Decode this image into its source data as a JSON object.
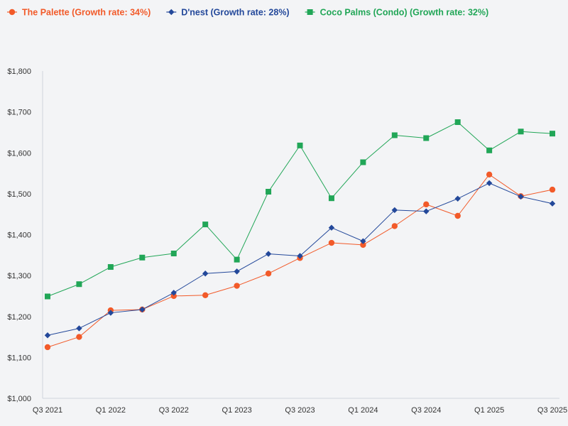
{
  "chart_data": {
    "type": "line",
    "title": "",
    "xlabel": "",
    "ylabel": "",
    "ylim": [
      1000,
      1800
    ],
    "ytick_step": 100,
    "ytick_labels": [
      "$1,000",
      "$1,100",
      "$1,200",
      "$1,300",
      "$1,400",
      "$1,500",
      "$1,600",
      "$1,700",
      "$1,800"
    ],
    "grid": false,
    "legend_position": "top-left",
    "categories": [
      "Q3 2021",
      "Q4 2021",
      "Q1 2022",
      "Q2 2022",
      "Q3 2022",
      "Q4 2022",
      "Q1 2023",
      "Q2 2023",
      "Q3 2023",
      "Q4 2023",
      "Q1 2024",
      "Q2 2024",
      "Q3 2024",
      "Q4 2024",
      "Q1 2025",
      "Q2 2025",
      "Q3 2025"
    ],
    "x_tick_labels": [
      "Q3 2021",
      "",
      "Q1 2022",
      "",
      "Q3 2022",
      "",
      "Q1 2023",
      "",
      "Q3 2023",
      "",
      "Q1 2024",
      "",
      "Q3 2024",
      "",
      "Q1 2025",
      "",
      "Q3 2025"
    ],
    "series": [
      {
        "name": "The Palette (Growth rate: 34%)",
        "color": "#f25a29",
        "marker": "circle",
        "values": [
          1125,
          1150,
          1215,
          1217,
          1250,
          1252,
          1275,
          1305,
          1343,
          1380,
          1375,
          1421,
          1474,
          1446,
          1547,
          1494,
          1510
        ]
      },
      {
        "name": "D'nest (Growth rate: 28%)",
        "color": "#23489a",
        "marker": "diamond",
        "values": [
          1154,
          1171,
          1209,
          1217,
          1258,
          1305,
          1310,
          1353,
          1348,
          1417,
          1384,
          1460,
          1457,
          1488,
          1526,
          1493,
          1476
        ]
      },
      {
        "name": "Coco Palms (Condo) (Growth rate: 32%)",
        "color": "#21a657",
        "marker": "square",
        "values": [
          1249,
          1279,
          1321,
          1344,
          1354,
          1425,
          1339,
          1505,
          1618,
          1489,
          1577,
          1643,
          1636,
          1675,
          1606,
          1652,
          1647
        ]
      }
    ]
  }
}
